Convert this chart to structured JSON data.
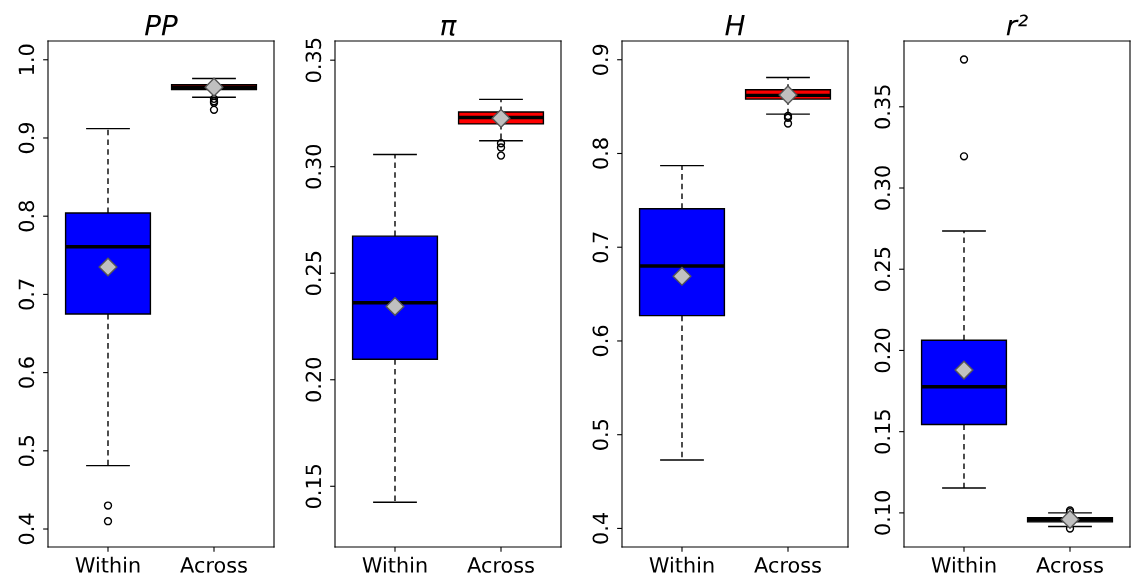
{
  "chart_data": [
    {
      "type": "box",
      "title": "PP",
      "categories": [
        "Within",
        "Across"
      ],
      "colors": [
        "#0000ff",
        "#ff0000"
      ],
      "ylim": [
        0.377,
        1.024
      ],
      "yticks": [
        0.4,
        0.5,
        0.6,
        0.7,
        0.8,
        0.9,
        {
          "value": 1.0,
          "label": "1.0"
        }
      ],
      "boxes": [
        {
          "low": 0.481,
          "q1": 0.675,
          "median": 0.761,
          "q3": 0.804,
          "high": 0.912,
          "mean": 0.735,
          "outliers": [
            0.43,
            0.41
          ]
        },
        {
          "low": 0.952,
          "q1": 0.962,
          "median": 0.965,
          "q3": 0.968,
          "high": 0.976,
          "mean": 0.965,
          "outliers": [
            0.95,
            0.947,
            0.945,
            0.936
          ]
        }
      ]
    },
    {
      "type": "box",
      "title": "π",
      "categories": [
        "Within",
        "Across"
      ],
      "colors": [
        "#0000ff",
        "#ff0000"
      ],
      "ylim": [
        0.1215,
        0.359
      ],
      "yticks": [
        0.15,
        {
          "value": 0.2,
          "label": "0.20"
        },
        0.25,
        {
          "value": 0.3,
          "label": "0.30"
        },
        0.35
      ],
      "boxes": [
        {
          "low": 0.1425,
          "q1": 0.2096,
          "median": 0.2361,
          "q3": 0.2674,
          "high": 0.3057,
          "mean": 0.2344
        },
        {
          "low": 0.3122,
          "q1": 0.3201,
          "median": 0.3231,
          "q3": 0.3257,
          "high": 0.3316,
          "mean": 0.3227,
          "outliers": [
            0.311,
            0.309,
            0.3052
          ]
        }
      ]
    },
    {
      "type": "box",
      "title": "H",
      "categories": [
        "Within",
        "Across"
      ],
      "colors": [
        "#0000ff",
        "#ff0000"
      ],
      "ylim": [
        0.3802,
        0.92
      ],
      "yticks": [
        0.4,
        0.5,
        0.6,
        0.7,
        0.8,
        0.9
      ],
      "boxes": [
        {
          "low": 0.473,
          "q1": 0.627,
          "median": 0.68,
          "q3": 0.741,
          "high": 0.787,
          "mean": 0.669
        },
        {
          "low": 0.842,
          "q1": 0.858,
          "median": 0.862,
          "q3": 0.868,
          "high": 0.881,
          "mean": 0.8625,
          "outliers": [
            0.84,
            0.838,
            0.832
          ]
        }
      ]
    },
    {
      "type": "box",
      "title": "r²",
      "categories": [
        "Within",
        "Across"
      ],
      "colors": [
        "#0000ff",
        "#000000"
      ],
      "ylim": [
        0.079,
        0.3905
      ],
      "yticks": [
        {
          "value": 0.1,
          "label": "0.10"
        },
        0.15,
        {
          "value": 0.2,
          "label": "0.20"
        },
        0.25,
        {
          "value": 0.3,
          "label": "0.30"
        },
        0.35
      ],
      "boxes": [
        {
          "low": 0.1153,
          "q1": 0.1544,
          "median": 0.1776,
          "q3": 0.2063,
          "high": 0.2735,
          "mean": 0.1879,
          "outliers": [
            0.3791,
            0.3195
          ]
        },
        {
          "low": 0.0916,
          "q1": 0.0945,
          "median": 0.096,
          "q3": 0.097,
          "high": 0.1,
          "mean": 0.096,
          "outliers": [
            0.1015,
            0.1005,
            0.0904
          ]
        }
      ]
    }
  ]
}
